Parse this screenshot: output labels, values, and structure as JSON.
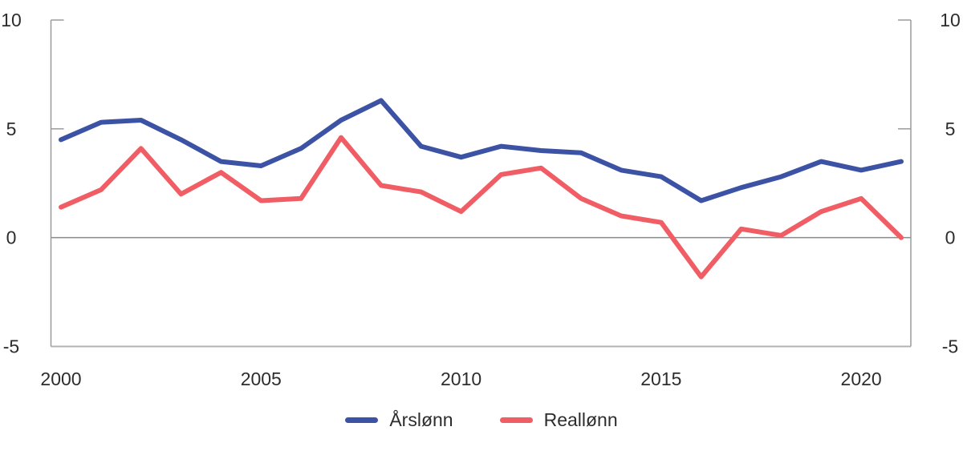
{
  "chart_data": {
    "type": "line",
    "title": "",
    "xlabel": "",
    "ylabel": "",
    "x": [
      2000,
      2001,
      2002,
      2003,
      2004,
      2005,
      2006,
      2007,
      2008,
      2009,
      2010,
      2011,
      2012,
      2013,
      2014,
      2015,
      2016,
      2017,
      2018,
      2019,
      2020,
      2021
    ],
    "series": [
      {
        "name": "Årslønn",
        "color": "#3C52A4",
        "values": [
          4.5,
          5.3,
          5.4,
          4.5,
          3.5,
          3.3,
          4.1,
          5.4,
          6.3,
          4.2,
          3.7,
          4.2,
          4.0,
          3.9,
          3.1,
          2.8,
          1.7,
          2.3,
          2.8,
          3.5,
          3.1,
          3.5
        ]
      },
      {
        "name": "Reallønn",
        "color": "#F15D64",
        "values": [
          1.4,
          2.2,
          4.1,
          2.0,
          3.0,
          1.7,
          1.8,
          4.6,
          2.4,
          2.1,
          1.2,
          2.9,
          3.2,
          1.8,
          1.0,
          0.7,
          -1.8,
          0.4,
          0.1,
          1.2,
          1.8,
          0.0
        ]
      }
    ],
    "ylim": [
      -5,
      10
    ],
    "yticks": [
      -5,
      0,
      5,
      10
    ],
    "xticks": [
      2000,
      2005,
      2010,
      2015,
      2020
    ],
    "y_axis_labels_both_sides": true,
    "grid": "zero-line-only",
    "legend_position": "bottom-center"
  },
  "colors": {
    "axis_line": "#9b9b9b",
    "zero_line": "#8a8a8a",
    "bottom_line": "#b3b3b3",
    "tick_label": "#2d2d2d",
    "background": "#ffffff"
  }
}
